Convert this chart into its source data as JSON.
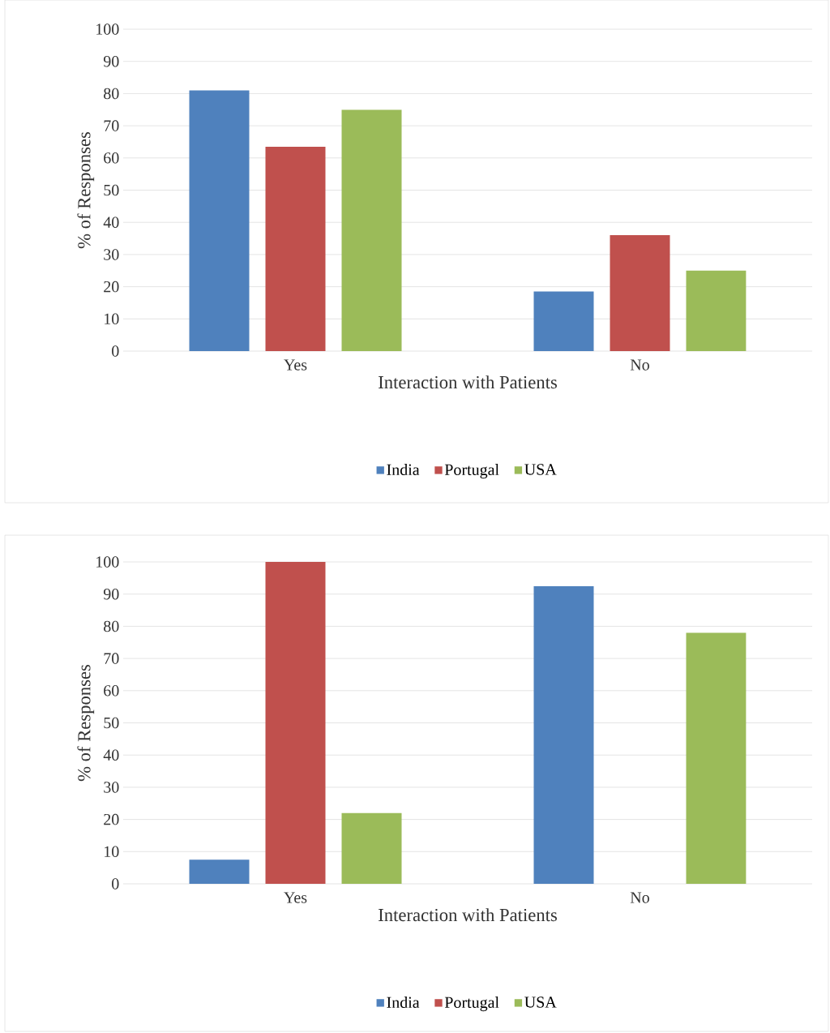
{
  "chart_data": [
    {
      "type": "bar",
      "xlabel": "Interaction with Patients",
      "ylabel": "% of Responses",
      "categories": [
        "Yes",
        "No"
      ],
      "series": [
        {
          "name": "India",
          "color": "#4f81bd",
          "values": [
            81,
            18.5
          ]
        },
        {
          "name": "Portugal",
          "color": "#c0504d",
          "values": [
            63.5,
            36
          ]
        },
        {
          "name": "USA",
          "color": "#9bbb59",
          "values": [
            75,
            25
          ]
        }
      ],
      "ylim": [
        0,
        100
      ],
      "yticks": [
        0,
        10,
        20,
        30,
        40,
        50,
        60,
        70,
        80,
        90,
        100
      ],
      "grid": "y",
      "legend": "bottom"
    },
    {
      "type": "bar",
      "xlabel": "Interaction with Patients",
      "ylabel": "% of Responses",
      "categories": [
        "Yes",
        "No"
      ],
      "series": [
        {
          "name": "India",
          "color": "#4f81bd",
          "values": [
            7.5,
            92.5
          ]
        },
        {
          "name": "Portugal",
          "color": "#c0504d",
          "values": [
            100,
            0
          ]
        },
        {
          "name": "USA",
          "color": "#9bbb59",
          "values": [
            22,
            78
          ]
        }
      ],
      "ylim": [
        0,
        100
      ],
      "yticks": [
        0,
        10,
        20,
        30,
        40,
        50,
        60,
        70,
        80,
        90,
        100
      ],
      "grid": "y",
      "legend": "bottom"
    }
  ]
}
